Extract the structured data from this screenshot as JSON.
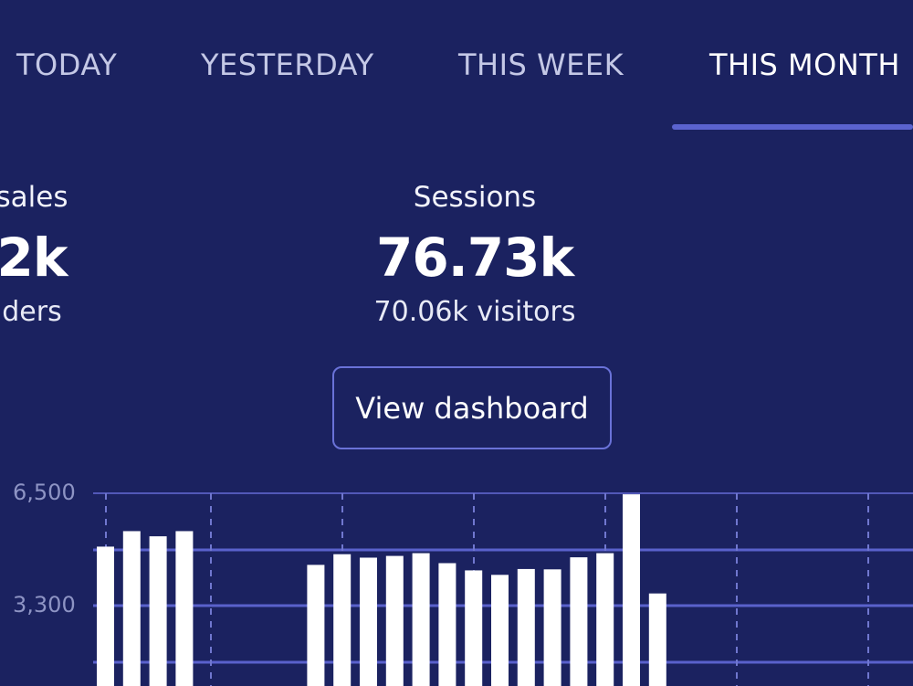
{
  "tabs": [
    {
      "label": "TODAY"
    },
    {
      "label": "YESTERDAY"
    },
    {
      "label": "THIS WEEK"
    },
    {
      "label": "THIS MONTH"
    }
  ],
  "stats": {
    "sales": {
      "label": "sales",
      "value": "2k",
      "sub": "ders"
    },
    "sessions": {
      "label": "Sessions",
      "value": "76.73k",
      "sub": "70.06k visitors"
    }
  },
  "view_dashboard_label": "View dashboard",
  "colors": {
    "background": "#1b2260",
    "accent": "#5b63cf",
    "bar": "#ffffff"
  },
  "chart_data": {
    "type": "bar",
    "yticks": [
      "6,500",
      "3,300"
    ],
    "ylim": [
      0,
      6500
    ],
    "grid": true,
    "values": [
      4950,
      5400,
      5250,
      5400,
      570,
      null,
      null,
      null,
      4420,
      4730,
      4630,
      4680,
      4760,
      4470,
      4260,
      4130,
      4300,
      4290,
      4640,
      4760,
      6470,
      3590
    ]
  }
}
